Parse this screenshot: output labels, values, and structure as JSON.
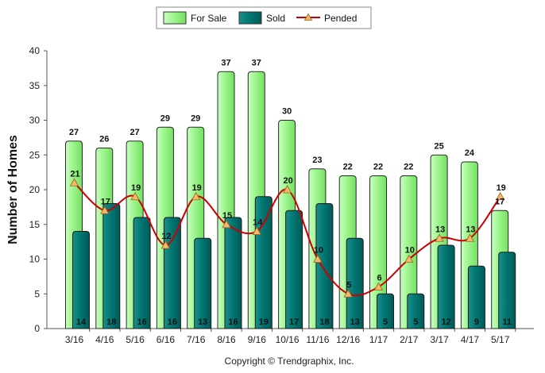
{
  "chart_data": {
    "type": "bar",
    "ylabel": "Number of Homes",
    "ylim": [
      0,
      40
    ],
    "yticks": [
      0,
      5,
      10,
      15,
      20,
      25,
      30,
      35,
      40
    ],
    "categories": [
      "3/16",
      "4/16",
      "5/16",
      "6/16",
      "7/16",
      "8/16",
      "9/16",
      "10/16",
      "11/16",
      "12/16",
      "1/17",
      "2/17",
      "3/17",
      "4/17",
      "5/17"
    ],
    "series": [
      {
        "name": "For Sale",
        "type": "bar",
        "color": "#99ff99",
        "values": [
          27,
          26,
          27,
          29,
          29,
          37,
          37,
          30,
          23,
          22,
          22,
          22,
          25,
          24,
          17
        ]
      },
      {
        "name": "Sold",
        "type": "bar",
        "color": "#007777",
        "values": [
          14,
          18,
          16,
          16,
          13,
          16,
          19,
          17,
          18,
          13,
          5,
          5,
          12,
          9,
          11
        ]
      },
      {
        "name": "Pended",
        "type": "line",
        "color": "#cc0000",
        "marker": "triangle",
        "values": [
          21,
          17,
          19,
          12,
          19,
          15,
          14,
          20,
          10,
          5,
          6,
          10,
          13,
          13,
          19
        ]
      }
    ],
    "legend_position": "top-center",
    "grid": false
  },
  "footer": {
    "copyright": "Copyright © Trendgraphix, Inc."
  }
}
